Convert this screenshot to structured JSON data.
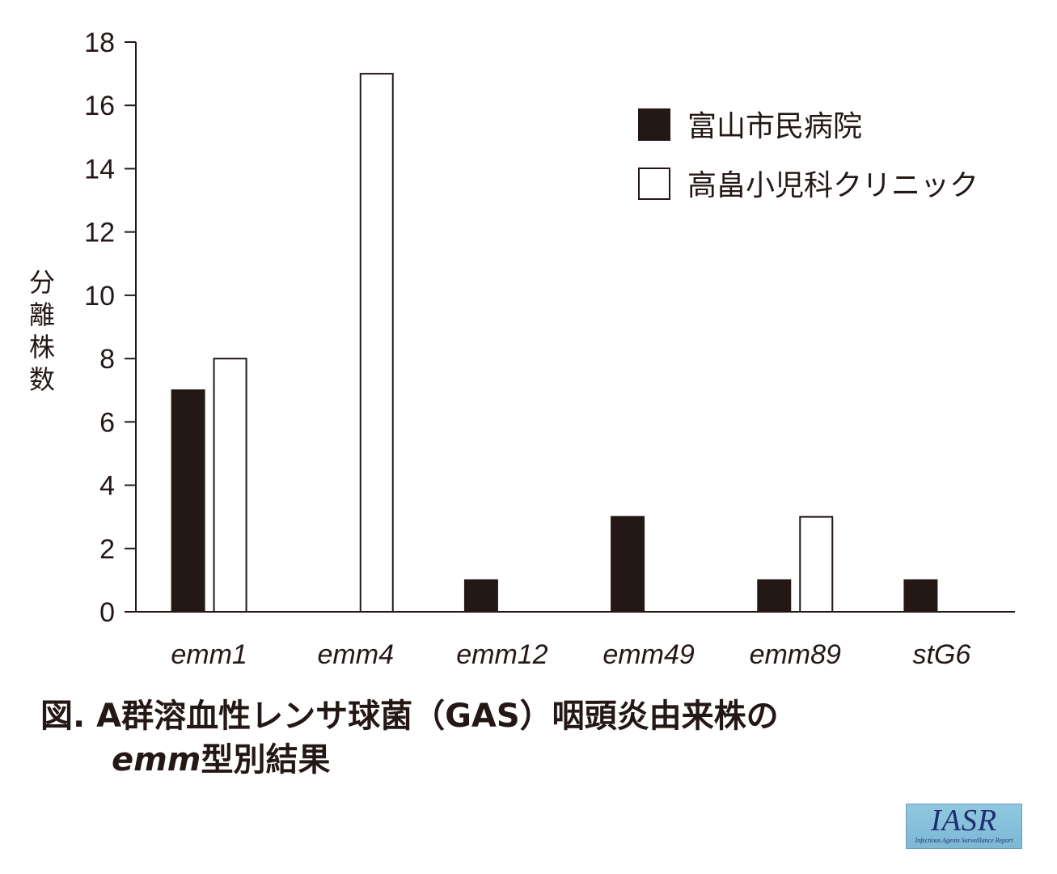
{
  "chart_data": {
    "type": "bar",
    "categories": [
      "emm1",
      "emm4",
      "emm12",
      "emm49",
      "emm89",
      "stG6"
    ],
    "series": [
      {
        "name": "富山市民病院",
        "values": [
          7,
          0,
          1,
          3,
          1,
          1
        ],
        "color": "#231815"
      },
      {
        "name": "高畠小児科クリニック",
        "values": [
          8,
          17,
          0,
          0,
          3,
          0
        ],
        "color": "#ffffff"
      }
    ],
    "ylabel": "分離株数",
    "ylim": [
      0,
      18
    ],
    "yticks": [
      0,
      2,
      4,
      6,
      8,
      10,
      12,
      14,
      16,
      18
    ],
    "legend_position": "top-right",
    "grid": false
  },
  "caption": {
    "line1": "図. A群溶血性レンサ球菌（GAS）咽頭炎由来株の",
    "line2_italic": "emm",
    "line2_rest": "型別結果"
  },
  "logo": {
    "text": "IASR",
    "subtext": "Infectious Agents Surveillance Report"
  }
}
